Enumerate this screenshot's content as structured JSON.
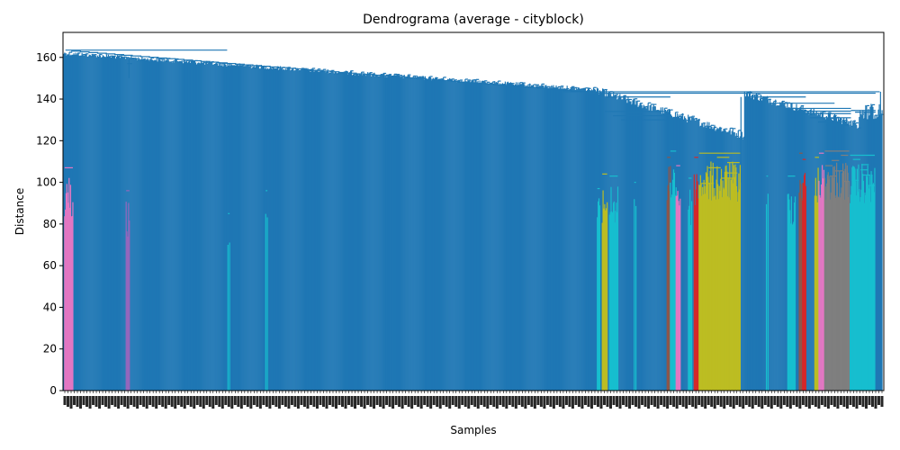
{
  "chart_data": {
    "type": "dendrogram",
    "title": "Dendrograma (average - cityblock)",
    "xlabel": "Samples",
    "ylabel": "Distance",
    "ylim": [
      0,
      172
    ],
    "yticks": [
      0,
      20,
      40,
      60,
      80,
      100,
      120,
      140,
      160
    ],
    "root_height": 164,
    "default_color": "#1f77b4",
    "clusters": [
      {
        "color": "#e377c2",
        "x_range": [
          0.2,
          1.2
        ],
        "top": 107
      },
      {
        "color": "#9467bd",
        "x_range": [
          7.7,
          8.1
        ],
        "top": 96
      },
      {
        "color": "#17becf",
        "x_range": [
          20.1,
          20.3
        ],
        "top": 85
      },
      {
        "color": "#17becf",
        "x_range": [
          24.7,
          24.9
        ],
        "top": 96
      },
      {
        "color": "#17becf",
        "x_range": [
          65.1,
          65.4
        ],
        "top": 97
      },
      {
        "color": "#bcbd22",
        "x_range": [
          65.7,
          66.3
        ],
        "top": 104
      },
      {
        "color": "#17becf",
        "x_range": [
          66.6,
          67.6
        ],
        "top": 103
      },
      {
        "color": "#17becf",
        "x_range": [
          69.6,
          69.8
        ],
        "top": 100
      },
      {
        "color": "#8c564b",
        "x_range": [
          73.6,
          74.0
        ],
        "top": 112
      },
      {
        "color": "#17becf",
        "x_range": [
          74.0,
          74.7
        ],
        "top": 115
      },
      {
        "color": "#e377c2",
        "x_range": [
          74.7,
          75.2
        ],
        "top": 108
      },
      {
        "color": "#17becf",
        "x_range": [
          76.2,
          76.6
        ],
        "top": 102
      },
      {
        "color": "#d62728",
        "x_range": [
          76.9,
          77.4
        ],
        "top": 112
      },
      {
        "color": "#bcbd22",
        "x_range": [
          77.5,
          82.5
        ],
        "top": 114
      },
      {
        "color": "#17becf",
        "x_range": [
          85.7,
          85.9
        ],
        "top": 103
      },
      {
        "color": "#17becf",
        "x_range": [
          88.3,
          89.2
        ],
        "top": 103
      },
      {
        "color": "#8c564b",
        "x_range": [
          89.7,
          90.1
        ],
        "top": 114
      },
      {
        "color": "#d62728",
        "x_range": [
          90.1,
          90.5
        ],
        "top": 111
      },
      {
        "color": "#bcbd22",
        "x_range": [
          91.6,
          92.1
        ],
        "top": 112
      },
      {
        "color": "#e377c2",
        "x_range": [
          92.1,
          92.7
        ],
        "top": 114
      },
      {
        "color": "#7f7f7f",
        "x_range": [
          92.8,
          95.8
        ],
        "top": 115
      },
      {
        "color": "#17becf",
        "x_range": [
          95.9,
          98.9
        ],
        "top": 113
      }
    ]
  }
}
